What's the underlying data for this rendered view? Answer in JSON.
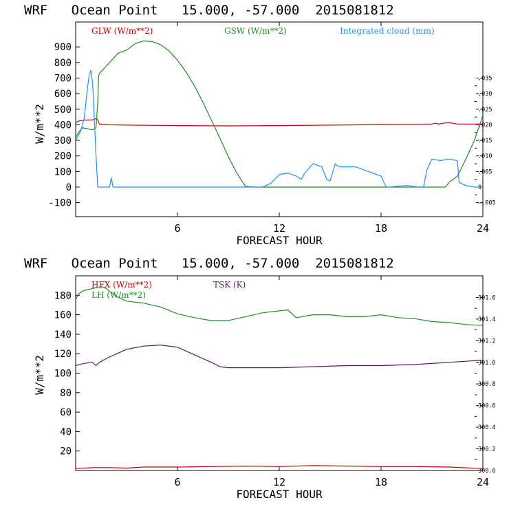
{
  "chart_data": [
    {
      "type": "line",
      "title": "WRF   Ocean Point   15.000, -57.000  2015081812",
      "xlabel": "FORECAST HOUR",
      "ylabel": "W/m**2",
      "xlim": [
        0,
        24
      ],
      "ylim": [
        -190,
        1060
      ],
      "y2lim": [
        -0.0095,
        0.053
      ],
      "xticks": [
        "6",
        "12",
        "18",
        "24"
      ],
      "xtick_values": [
        6,
        12,
        18,
        24
      ],
      "yticks": [
        "900",
        "800",
        "700",
        "600",
        "500",
        "400",
        "300",
        "200",
        "100",
        "0",
        "-100"
      ],
      "ytick_values": [
        900,
        800,
        700,
        600,
        500,
        400,
        300,
        200,
        100,
        0,
        -100
      ],
      "y2ticks": [
        ".035",
        ".030",
        ".025",
        ".020",
        ".015",
        ".010",
        ".005",
        "0",
        "-.005"
      ],
      "y2tick_values": [
        0.035,
        0.03,
        0.025,
        0.02,
        0.015,
        0.01,
        0.005,
        0.0,
        -0.005
      ],
      "series": [
        {
          "name": "GLW (W/m**2)",
          "color": "#cc0000",
          "axis": "left",
          "x": [
            0,
            0.2,
            0.5,
            1.0,
            1.2,
            1.3,
            1.4,
            2.0,
            3.0,
            6.0,
            9.0,
            12.0,
            15.0,
            17.0,
            18.0,
            19.0,
            20.0,
            21.0,
            21.2,
            21.4,
            21.8,
            22.0,
            22.3,
            22.5,
            23.0,
            24.0
          ],
          "y": [
            415,
            425,
            430,
            432,
            440,
            432,
            405,
            400,
            398,
            395,
            393,
            395,
            398,
            400,
            402,
            400,
            403,
            405,
            410,
            405,
            412,
            414,
            408,
            405,
            405,
            405
          ]
        },
        {
          "name": "GSW (W/m**2)",
          "color": "#228b22",
          "axis": "left",
          "x": [
            0,
            0.2,
            0.4,
            0.6,
            0.8,
            1.0,
            1.2,
            1.3,
            1.35,
            1.4,
            2.0,
            2.5,
            3.0,
            3.5,
            4.0,
            4.5,
            5.0,
            5.5,
            6.0,
            6.5,
            7.0,
            7.5,
            8.0,
            8.5,
            9.0,
            9.5,
            10.0,
            10.5,
            11.0,
            12.0,
            15.0,
            18.0,
            21.0,
            21.8,
            22.0,
            22.5,
            23.0,
            23.5,
            24.0
          ],
          "y": [
            320,
            355,
            380,
            378,
            372,
            368,
            380,
            540,
            710,
            730,
            800,
            860,
            880,
            920,
            938,
            935,
            915,
            875,
            815,
            740,
            650,
            545,
            430,
            315,
            195,
            90,
            5,
            0,
            0,
            0,
            0,
            0,
            0,
            0,
            30,
            70,
            180,
            300,
            460
          ]
        },
        {
          "name": "Integrated cloud (mm)",
          "color": "#1e90ff",
          "axis": "right",
          "x": [
            0,
            0.3,
            0.5,
            0.7,
            0.8,
            0.9,
            1.0,
            1.1,
            1.2,
            1.3,
            1.4,
            1.5,
            1.6,
            1.7,
            1.8,
            2.0,
            2.1,
            2.2,
            4.0,
            8.0,
            10.0,
            10.5,
            11.0,
            11.5,
            12.0,
            12.5,
            13.0,
            13.3,
            13.5,
            14.0,
            14.5,
            14.8,
            15.0,
            15.3,
            15.5,
            16.0,
            16.5,
            17.0,
            17.5,
            18.0,
            18.3,
            18.5,
            19.0,
            19.5,
            20.0,
            20.2,
            20.5,
            20.7,
            21.0,
            21.5,
            22.0,
            22.5,
            22.6,
            23.0,
            23.5,
            24.0
          ],
          "y": [
            0.015,
            0.018,
            0.022,
            0.032,
            0.036,
            0.0375,
            0.033,
            0.022,
            0.01,
            0.0,
            0.0,
            0.0,
            0.0,
            0.0,
            0.0,
            0.0,
            0.003,
            0.0,
            0.0,
            0.0,
            0.0,
            0.0,
            0.0,
            0.0012,
            0.004,
            0.0045,
            0.0035,
            0.0025,
            0.0045,
            0.0075,
            0.0065,
            0.0025,
            0.002,
            0.0075,
            0.0065,
            0.0065,
            0.0065,
            0.0055,
            0.0045,
            0.0035,
            0.0,
            0.0,
            0.0003,
            0.0005,
            0.0002,
            0.0,
            0.0,
            0.0055,
            0.009,
            0.0085,
            0.009,
            0.0085,
            0.0015,
            0.0005,
            0.0,
            0.0
          ]
        }
      ]
    },
    {
      "type": "line",
      "title": "WRF   Ocean Point   15.000, -57.000  2015081812",
      "xlabel": "FORECAST HOUR",
      "ylabel": "W/m**2",
      "xlim": [
        0,
        24
      ],
      "ylim": [
        0,
        200
      ],
      "y2lim": [
        300.0,
        301.8
      ],
      "xticks": [
        "6",
        "12",
        "18",
        "24"
      ],
      "xtick_values": [
        6,
        12,
        18,
        24
      ],
      "yticks": [
        "180",
        "160",
        "140",
        "120",
        "100",
        "80",
        "60",
        "40",
        "20"
      ],
      "ytick_values": [
        180,
        160,
        140,
        120,
        100,
        80,
        60,
        40,
        20
      ],
      "y2ticks": [
        "301.6",
        "301.4",
        "301.2",
        "301.0",
        "300.8",
        "300.6",
        "300.4",
        "300.2",
        "300.0"
      ],
      "y2tick_values": [
        301.6,
        301.4,
        301.2,
        301.0,
        300.8,
        300.6,
        300.4,
        300.2,
        300.0
      ],
      "series": [
        {
          "name": "HFX (W/m**2)",
          "color": "#cc0000",
          "axis": "left",
          "x": [
            0,
            1,
            2,
            3,
            4,
            6,
            8,
            10,
            12,
            14,
            16,
            18,
            20,
            22,
            24
          ],
          "y": [
            2,
            3,
            3,
            2.5,
            3.5,
            3.5,
            4,
            4.5,
            4,
            5,
            4.5,
            4,
            4,
            3.5,
            2
          ]
        },
        {
          "name": "LH (W/m**2)",
          "color": "#228b22",
          "axis": "left",
          "x": [
            0,
            0.2,
            0.5,
            1.0,
            1.5,
            1.8,
            2.0,
            2.5,
            3.0,
            4.0,
            5.0,
            6.0,
            7.0,
            8.0,
            9.0,
            10.0,
            11.0,
            12.0,
            12.5,
            13.0,
            14.0,
            15.0,
            16.0,
            17.0,
            18.0,
            19.0,
            20.0,
            21.0,
            22.0,
            23.0,
            24.0
          ],
          "y": [
            176,
            182,
            185,
            187,
            189,
            187,
            184,
            178,
            174,
            172,
            168,
            161,
            157,
            154,
            154,
            158,
            162,
            164,
            165,
            157,
            160,
            160,
            158,
            158,
            160,
            157,
            156,
            153,
            152,
            150,
            149
          ]
        },
        {
          "name": "TSK (K)",
          "color": "#5b1a6e",
          "axis": "right",
          "x": [
            0,
            0.5,
            1.0,
            1.2,
            1.4,
            2.0,
            3.0,
            4.0,
            5.0,
            6.0,
            7.0,
            8.0,
            8.5,
            9.0,
            10.0,
            12.0,
            14.0,
            16.0,
            18.0,
            20.0,
            22.0,
            24.0
          ],
          "y": [
            300.97,
            300.99,
            301.0,
            300.97,
            301.0,
            301.05,
            301.12,
            301.15,
            301.16,
            301.14,
            301.07,
            301.0,
            300.96,
            300.95,
            300.95,
            300.95,
            300.96,
            300.97,
            300.97,
            300.98,
            301.0,
            301.02
          ]
        }
      ]
    }
  ]
}
